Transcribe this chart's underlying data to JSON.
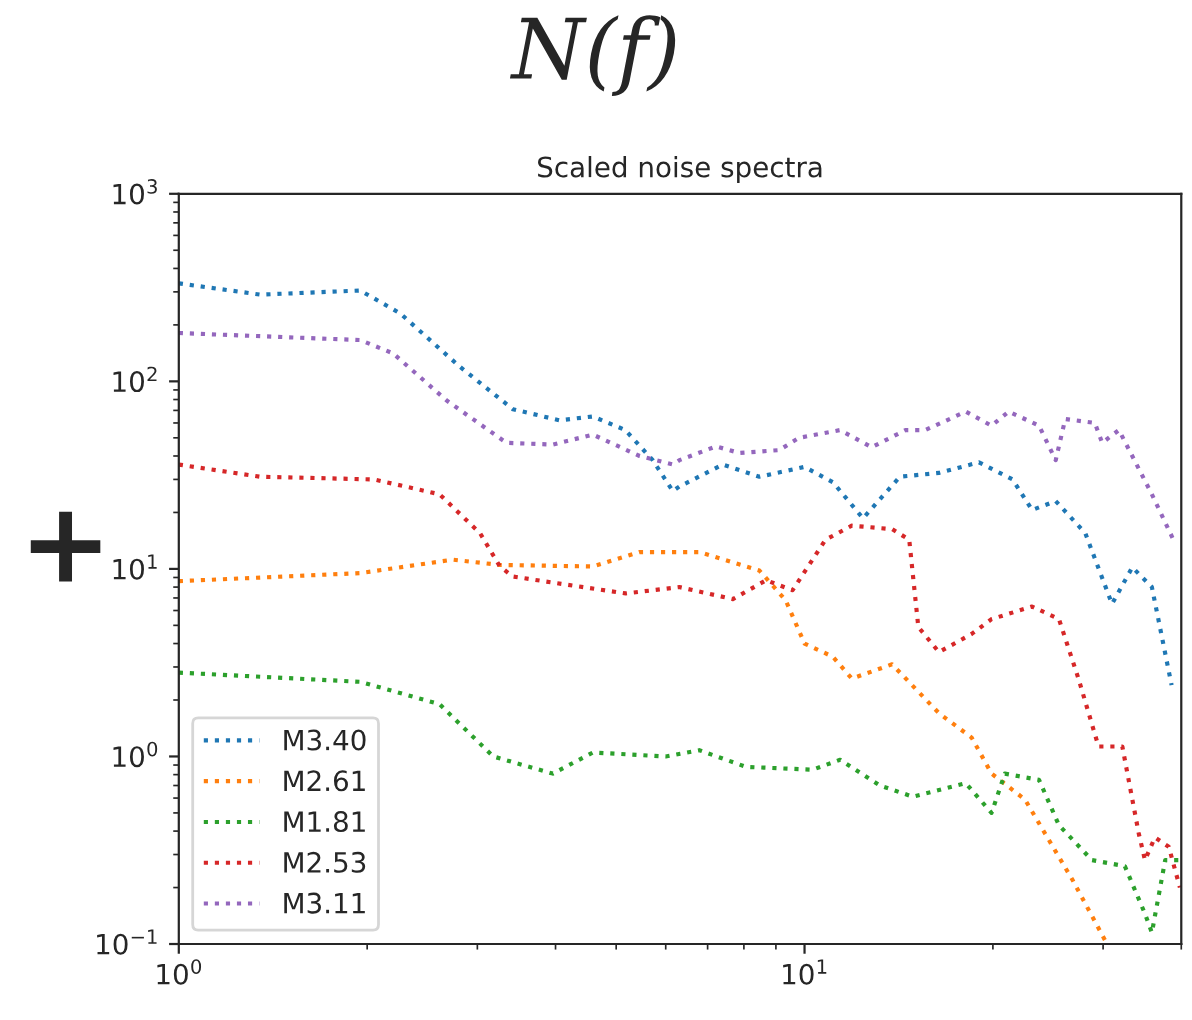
{
  "chart_data": {
    "type": "line",
    "title": "N(f)",
    "subtitle": "Scaled noise spectra",
    "annotations": [
      "+"
    ],
    "log": "xy",
    "xlim": [
      1,
      40
    ],
    "ylim": [
      0.1,
      1000
    ],
    "xticks": [
      {
        "value": 1,
        "label": "10$^{0}$"
      },
      {
        "value": 10,
        "label": "10$^{1}$"
      }
    ],
    "yticks": [
      {
        "value": 0.1,
        "label": "10$^{−1}$"
      },
      {
        "value": 1,
        "label": "10$^{0}$"
      },
      {
        "value": 10,
        "label": "10$^{1}$"
      },
      {
        "value": 100,
        "label": "10$^{2}$"
      },
      {
        "value": 1000,
        "label": "10$^{3}$"
      }
    ],
    "grid": false,
    "legend": "bottom left",
    "line_style": "dotted",
    "marker": "none",
    "series": [
      {
        "name": "M3.40",
        "color": "#1f77b4",
        "x": [
          1.0,
          1.35,
          1.95,
          2.26,
          2.81,
          3.42,
          4.06,
          4.59,
          5.17,
          5.72,
          6.16,
          6.31,
          7.4,
          8.47,
          10.0,
          11.1,
          12.4,
          14.2,
          16.4,
          19.0,
          21.5,
          23.1,
          25.2,
          28.1,
          31.0,
          33.4,
          35.9,
          38.6
        ],
        "values": [
          333,
          290,
          305,
          230,
          120,
          71,
          62,
          65,
          55,
          38,
          26,
          27.5,
          36,
          31,
          35,
          29,
          18.6,
          31,
          32.5,
          37,
          30,
          20.6,
          23,
          15.5,
          6.5,
          10.2,
          8,
          2.4
        ]
      },
      {
        "name": "M2.61",
        "color": "#ff7f0e",
        "x": [
          1.0,
          1.95,
          2.74,
          3.26,
          4.59,
          5.45,
          6.31,
          6.79,
          8.47,
          9.33,
          10.0,
          11.1,
          11.9,
          13.8,
          16.4,
          18.5,
          19.9,
          22.5,
          26.8,
          30.2
        ],
        "values": [
          8.6,
          9.5,
          11.2,
          10.5,
          10.3,
          12.3,
          12.3,
          12.3,
          9.8,
          6.8,
          4.0,
          3.4,
          2.6,
          3.1,
          1.7,
          1.26,
          0.81,
          0.59,
          0.22,
          0.105
        ]
      },
      {
        "name": "M1.81",
        "color": "#2ca02c",
        "x": [
          1.0,
          1.95,
          2.61,
          3.18,
          3.96,
          4.59,
          6.0,
          6.79,
          8.06,
          10.3,
          11.4,
          13.2,
          14.9,
          18.1,
          19.9,
          20.9,
          23.7,
          25.5,
          28.8,
          32.5,
          35.0,
          35.9,
          37.7,
          39.8
        ],
        "values": [
          2.8,
          2.5,
          1.9,
          1.0,
          0.81,
          1.05,
          1.0,
          1.08,
          0.88,
          0.85,
          0.96,
          0.7,
          0.61,
          0.72,
          0.5,
          0.81,
          0.75,
          0.43,
          0.28,
          0.26,
          0.145,
          0.115,
          0.28,
          0.28
        ]
      },
      {
        "name": "M2.53",
        "color": "#d62728",
        "x": [
          1.0,
          1.35,
          2.05,
          2.61,
          3.03,
          3.26,
          3.42,
          5.18,
          6.31,
          7.68,
          8.68,
          9.57,
          10.8,
          11.9,
          13.8,
          14.7,
          15.2,
          16.4,
          18.5,
          19.9,
          23.1,
          25.5,
          27.4,
          29.5,
          32.2,
          34.2,
          35.0,
          36.3,
          38.2,
          39.8
        ],
        "values": [
          36,
          31,
          30,
          25,
          15.5,
          10.3,
          9.1,
          7.4,
          8,
          6.9,
          8.7,
          7.7,
          14.3,
          17,
          16.3,
          14.3,
          4.9,
          3.6,
          4.5,
          5.4,
          6.3,
          5.4,
          2.6,
          1.13,
          1.13,
          0.39,
          0.28,
          0.37,
          0.33,
          0.2
        ]
      },
      {
        "name": "M3.11",
        "color": "#9467bd",
        "x": [
          1.0,
          1.95,
          2.2,
          2.68,
          3.34,
          3.96,
          4.59,
          5.45,
          6.16,
          6.31,
          7.22,
          7.87,
          9.11,
          9.8,
          11.4,
          12.8,
          14.5,
          15.6,
          18.1,
          19.9,
          21.2,
          23.7,
          25.2,
          26.1,
          29.1,
          29.9,
          31.8,
          35.9,
          39.1
        ],
        "values": [
          181,
          166,
          141,
          79,
          47,
          46,
          52,
          40,
          36,
          38,
          45,
          41.5,
          43,
          50,
          55,
          44.5,
          55,
          55,
          69,
          58,
          69,
          58,
          38,
          63,
          60,
          47,
          55,
          25,
          13.7
        ]
      }
    ]
  }
}
